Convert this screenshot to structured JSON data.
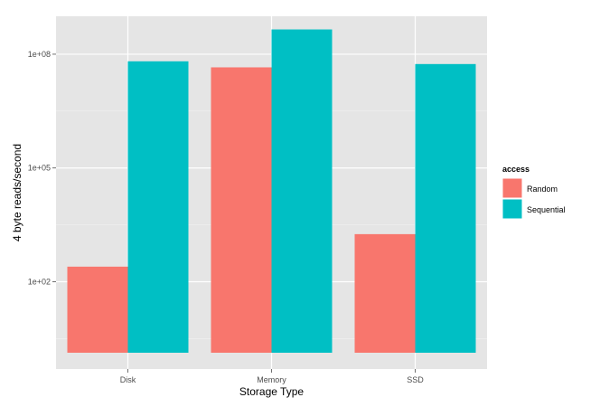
{
  "chart_data": {
    "type": "bar",
    "title": "",
    "xlabel": "Storage Type",
    "ylabel": "4 byte reads/second",
    "yscale": "log10",
    "ylim": [
      0.5,
      1000000000
    ],
    "y_ticks": [
      100,
      100000,
      100000000
    ],
    "y_tick_labels": [
      "1e+02",
      "1e+05",
      "1e+08"
    ],
    "categories": [
      "Disk",
      "Memory",
      "SSD"
    ],
    "grid": true,
    "legend": {
      "title": "access",
      "position": "right"
    },
    "series": [
      {
        "name": "Random",
        "color": "#F8766D",
        "values": [
          250,
          45000000,
          1800
        ]
      },
      {
        "name": "Sequential",
        "color": "#00BFC4",
        "values": [
          65000000,
          450000000,
          55000000
        ]
      }
    ]
  }
}
